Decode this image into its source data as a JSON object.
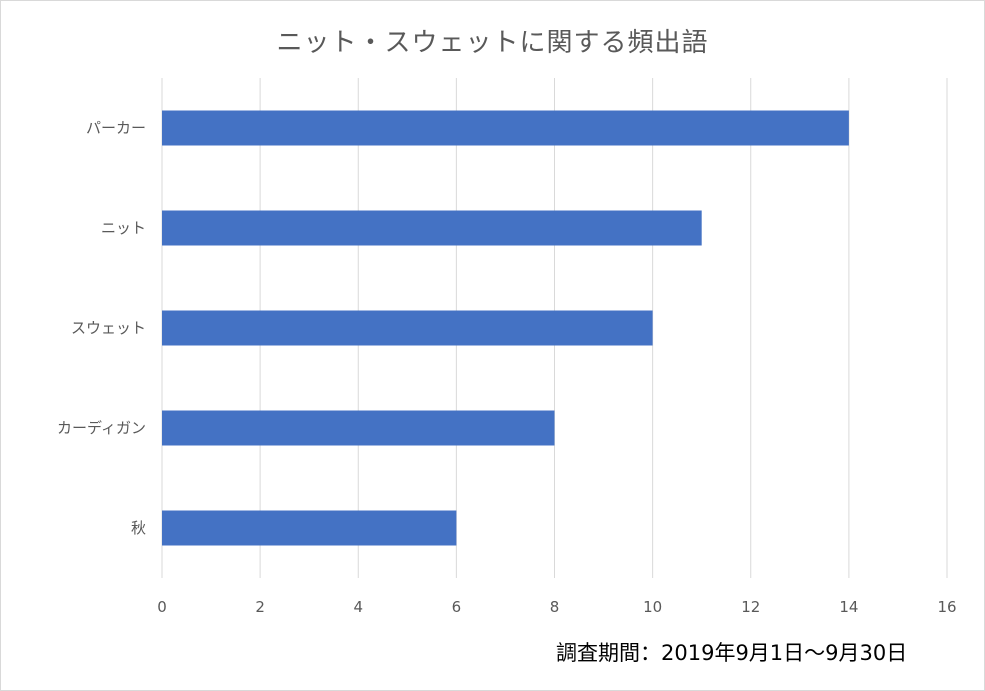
{
  "chart_data": {
    "type": "bar",
    "orientation": "horizontal",
    "title": "ニット・スウェットに関する頻出語",
    "categories": [
      "パーカー",
      "ニット",
      "スウェット",
      "カーディガン",
      "秋"
    ],
    "values": [
      14,
      11,
      10,
      8,
      6
    ],
    "xlim": [
      0,
      16
    ],
    "x_ticks": [
      0,
      2,
      4,
      6,
      8,
      10,
      12,
      14,
      16
    ],
    "grid": "vertical",
    "legend": "none",
    "bar_color": "#4472c4",
    "grid_color": "#d9d9d9"
  },
  "footnote": "調査期間：2019年9月1日～9月30日"
}
